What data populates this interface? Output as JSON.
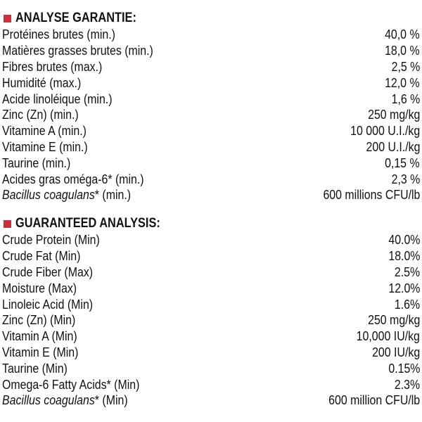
{
  "sections": [
    {
      "title": "ANALYSE GARANTIE:",
      "rows": [
        {
          "label": "Protéines brutes (min.)",
          "value": "40,0 %"
        },
        {
          "label": "Matières grasses brutes (min.)",
          "value": "18,0 %"
        },
        {
          "label": "Fibres brutes (max.)",
          "value": "2,5 %"
        },
        {
          "label": "Humidité (max.)",
          "value": "12,0 %"
        },
        {
          "label": "Acide linoléique (min.)",
          "value": "1,6 %"
        },
        {
          "label": "Zinc (Zn) (min.)",
          "value": "250 mg/kg"
        },
        {
          "label": "Vitamine A (min.)",
          "value": "10 000 U.I./kg"
        },
        {
          "label": "Vitamine E (min.)",
          "value": "200 U.I./kg"
        },
        {
          "label": "Taurine (min.)",
          "value": "0,15 %"
        },
        {
          "label": "Acides gras oméga-6* (min.)",
          "value": "2,3 %"
        },
        {
          "label_italic": "Bacillus coagulans",
          "label": "* (min.)",
          "value": "600 millions CFU/lb"
        }
      ]
    },
    {
      "title": "GUARANTEED ANALYSIS:",
      "rows": [
        {
          "label": "Crude Protein (Min)",
          "value": "40.0%"
        },
        {
          "label": "Crude Fat (Min)",
          "value": "18.0%"
        },
        {
          "label": "Crude Fiber (Max)",
          "value": "2.5%"
        },
        {
          "label": "Moisture (Max)",
          "value": "12.0%"
        },
        {
          "label": "Linoleic Acid (Min)",
          "value": "1.6%"
        },
        {
          "label": "Zinc (Zn) (Min)",
          "value": "250 mg/kg"
        },
        {
          "label": "Vitamin A (Min)",
          "value": "10,000 IU/kg"
        },
        {
          "label": "Vitamin E (Min)",
          "value": "200 IU/kg"
        },
        {
          "label": "Taurine (Min)",
          "value": "0.15%"
        },
        {
          "label": "Omega-6 Fatty Acids* (Min)",
          "value": "2.3%"
        },
        {
          "label_italic": "Bacillus coagulans",
          "label": "* (Min)",
          "value": "600 million CFU/lb"
        }
      ]
    }
  ]
}
